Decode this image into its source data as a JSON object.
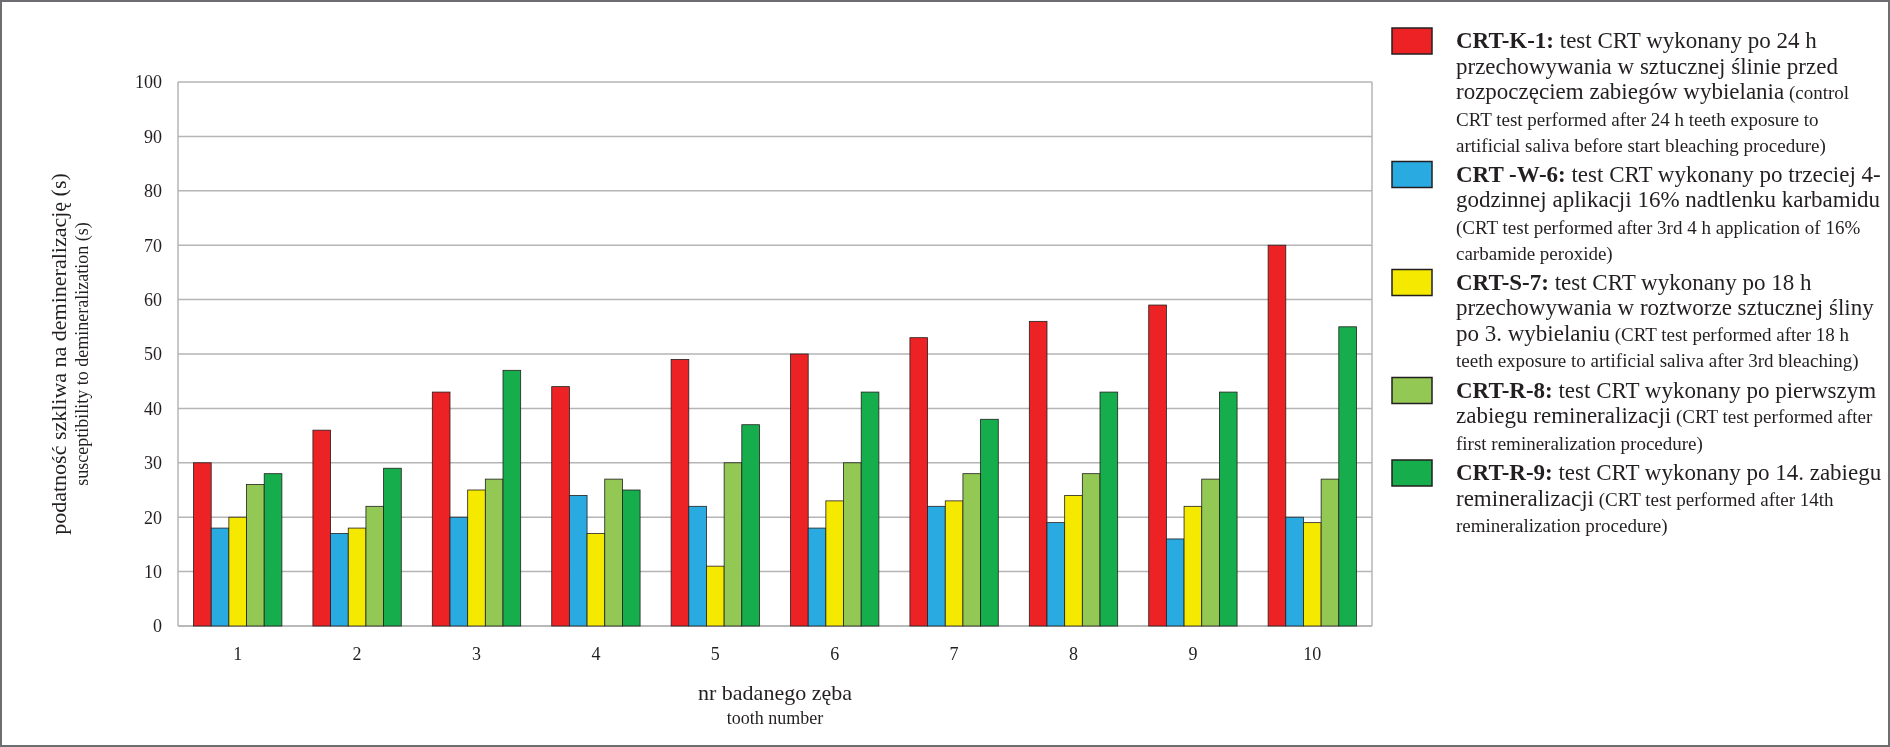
{
  "chart_data": {
    "type": "bar",
    "categories": [
      "1",
      "2",
      "3",
      "4",
      "5",
      "6",
      "7",
      "8",
      "9",
      "10"
    ],
    "series": [
      {
        "name": "CRT-K-1: test CRT wykonany po 24 h przechowywania w sztucznej ślinie przed rozpoczęciem zabiegów wybielania (control CRT test performed after 24 h teeth exposure to artificial saliva before start bleaching procedure)",
        "color": "#ed2224",
        "values": [
          30,
          36,
          43,
          44,
          49,
          50,
          53,
          56,
          59,
          70
        ]
      },
      {
        "name": "CRT -W-6: test CRT wykonany po trzeciej 4-godzinnej aplikacji 16% nadtlenku karbamidu (CRT test performed after 3rd 4 h application of 16% carbamide peroxide)",
        "color": "#29abe2",
        "values": [
          18,
          17,
          20,
          24,
          22,
          18,
          22,
          19,
          16,
          20
        ]
      },
      {
        "name": "CRT-S-7: test CRT wykonany po 18 h przechowywania w roztworze sztucznej śliny po 3. wybielaniu (CRT test performed after 18 h teeth exposure to artificial saliva after 3rd bleaching)",
        "color": "#f5e900",
        "values": [
          20,
          18,
          25,
          17,
          11,
          23,
          23,
          24,
          22,
          19
        ]
      },
      {
        "name": "CRT-R-8: test CRT wykonany po pierwszym zabiegu remineralizacji (CRT test performed after first remineralization procedure)",
        "color": "#92c853",
        "values": [
          26,
          22,
          27,
          27,
          30,
          30,
          28,
          28,
          27,
          27
        ]
      },
      {
        "name": "CRT-R-9: test CRT wykonany po 14. zabiegu remineralizacji (CRT test performed after 14th remineralization procedure)",
        "color": "#16ad4c",
        "values": [
          28,
          29,
          47,
          25,
          37,
          43,
          38,
          43,
          43,
          55
        ]
      }
    ],
    "xlabel": "nr badanego zęba\ntooth number",
    "ylabel": "podatność szkliwa na demineralizację (s)\nsusceptibility to demineralization (s)",
    "ylim": [
      0,
      100
    ],
    "yticks": [
      0,
      10,
      20,
      30,
      40,
      50,
      60,
      70,
      80,
      90,
      100
    ],
    "grid": "y",
    "legend": "right"
  }
}
